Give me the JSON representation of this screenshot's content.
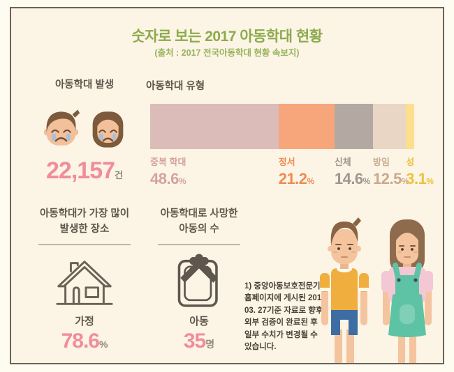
{
  "header": {
    "title": "숫자로 보는 2017 아동학대 현황",
    "subtitle": "(출처 : 2017 전국아동학대 현황 속보지)"
  },
  "occurrence": {
    "heading": "아동학대 발생",
    "value": "22,157",
    "unit": "건"
  },
  "types": {
    "heading": "아동학대 유형"
  },
  "chart_data": {
    "type": "bar",
    "subtype": "horizontal-stacked-100pct",
    "title": "아동학대 유형",
    "categories": [
      "중복 학대",
      "정서",
      "신체",
      "방임",
      "성"
    ],
    "values": [
      48.6,
      21.2,
      14.6,
      12.5,
      3.1
    ],
    "unit": "%",
    "colors": [
      "#dbbcb9",
      "#f7a67c",
      "#b3a9a2",
      "#e9d6c4",
      "#fbdf8d"
    ],
    "label_colors": [
      "#d2a3a0",
      "#ee8b52",
      "#9f968e",
      "#c9a98e",
      "#ecc23f"
    ],
    "legend_position": "below-segment-start",
    "grid": false
  },
  "place": {
    "heading": "아동학대가 가장 많이\n발생한 장소",
    "label": "가정",
    "value": "78.6",
    "unit": "%"
  },
  "deaths": {
    "heading": "아동학대로 사망한\n아동의 수",
    "label": "아동",
    "value": "35",
    "unit": "명"
  },
  "footnote": {
    "text": "1) 중앙아동보호전문기관\n홈페이지에 게시된 2018.\n03. 27기준 자료로 향후\n외부 검증이 완료된 후\n일부 수치가 변경될 수\n있습니다."
  },
  "colors": {
    "background": "#fcf4e5",
    "frame_border": "#6a6456",
    "title_green": "#8cab4c",
    "heading_brown": "#5d564b",
    "accent_pink": "#f08c9e",
    "unit_gray": "#8f887a",
    "icon_stroke": "#6b6257"
  }
}
